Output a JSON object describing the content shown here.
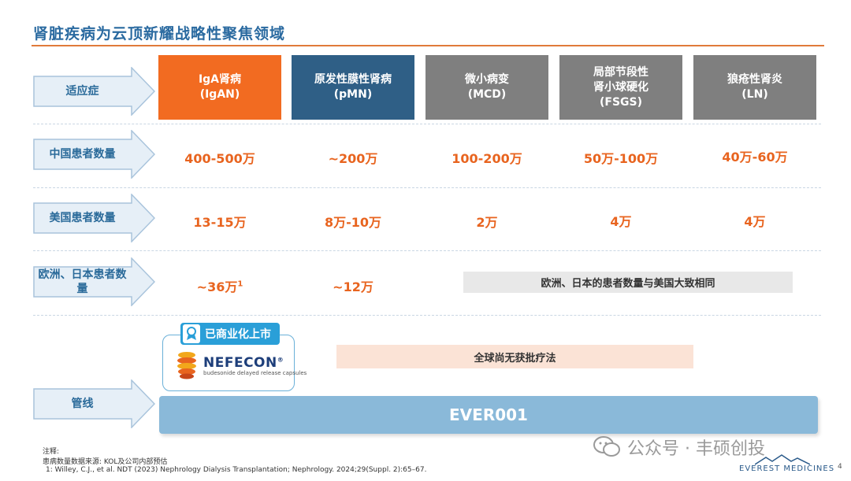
{
  "title": "肾脏疾病为云顶新耀战略性聚焦领域",
  "row_labels": [
    "适应症",
    "中国患者数量",
    "美国患者数量",
    "欧洲、日本患者数量",
    "管线"
  ],
  "columns": [
    {
      "line1": "IgA肾病",
      "line2": "(IgAN)",
      "line3": "",
      "color": "#f26b21"
    },
    {
      "line1": "原发性膜性肾病",
      "line2": "(pMN)",
      "line3": "",
      "color": "#2f5f86"
    },
    {
      "line1": "微小病变",
      "line2": "(MCD)",
      "line3": "",
      "color": "#7f7f7f"
    },
    {
      "line1": "局部节段性",
      "line2": "肾小球硬化",
      "line3": "(FSGS)",
      "color": "#7f7f7f"
    },
    {
      "line1": "狼疮性肾炎",
      "line2": "(LN)",
      "line3": "",
      "color": "#7f7f7f"
    }
  ],
  "china": [
    "400-500万",
    "~200万",
    "100-200万",
    "50万-100万",
    "40万-60万"
  ],
  "us": [
    "13-15万",
    "8万-10万",
    "2万",
    "4万",
    "4万"
  ],
  "eu_jp": {
    "igan": "~36万",
    "igan_sup": "1",
    "pmn": "~12万",
    "others": "欧洲、日本的患者数量与美国大致相同"
  },
  "pipeline": {
    "badge": "已商业化上市",
    "product": "NEFECON",
    "reg": "®",
    "product_sub": "budesonide delayed release capsules",
    "no_therapy": "全球尚无获批疗法",
    "ever": "EVER001"
  },
  "notes": {
    "label": "注释:",
    "source": "患病数量数据来源: KOL及公司内部预估",
    "ref": "1:   Willey, C.J., et al. NDT (2023) Nephrology Dialysis Transplantation; Nephrology. 2024;29(Suppl. 2):65–67."
  },
  "watermark": "公众号 · 丰硕创投",
  "brand": "EVEREST MEDICINES",
  "page_number": "4"
}
